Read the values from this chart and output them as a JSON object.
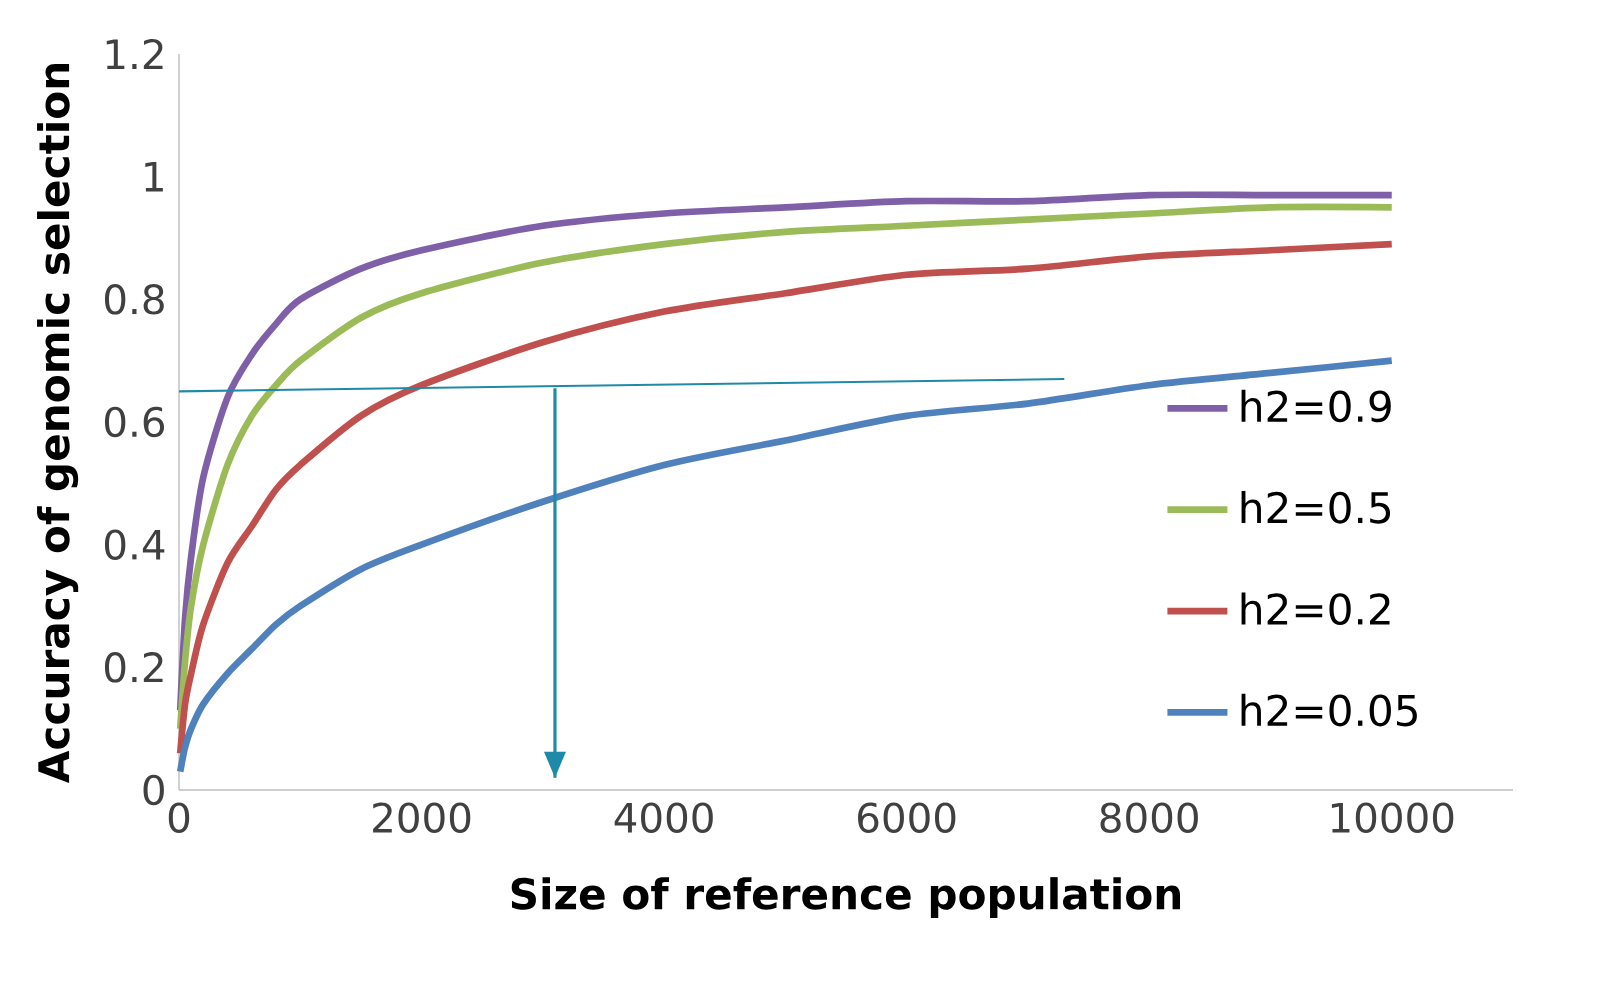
{
  "chart_data": {
    "type": "line",
    "xlabel": "Size of reference population",
    "ylabel": "Accuracy of genomic selection",
    "x": [
      10,
      50,
      100,
      200,
      400,
      600,
      800,
      1000,
      1500,
      2000,
      3000,
      4000,
      5000,
      6000,
      7000,
      8000,
      9000,
      10000
    ],
    "series": [
      {
        "name": "h2=0.9",
        "color": "#7f60a8",
        "values": [
          0.13,
          0.28,
          0.38,
          0.51,
          0.64,
          0.71,
          0.76,
          0.8,
          0.85,
          0.88,
          0.92,
          0.94,
          0.95,
          0.96,
          0.96,
          0.97,
          0.97,
          0.97
        ]
      },
      {
        "name": "h2=0.5",
        "color": "#9bbb59",
        "values": [
          0.1,
          0.21,
          0.3,
          0.4,
          0.53,
          0.61,
          0.66,
          0.7,
          0.77,
          0.81,
          0.86,
          0.89,
          0.91,
          0.92,
          0.93,
          0.94,
          0.95,
          0.95
        ]
      },
      {
        "name": "h2=0.2",
        "color": "#c0504d",
        "values": [
          0.06,
          0.14,
          0.19,
          0.27,
          0.37,
          0.43,
          0.49,
          0.53,
          0.61,
          0.66,
          0.73,
          0.78,
          0.81,
          0.84,
          0.85,
          0.87,
          0.88,
          0.89
        ]
      },
      {
        "name": "h2=0.05",
        "color": "#4f81bd",
        "values": [
          0.03,
          0.07,
          0.1,
          0.14,
          0.19,
          0.23,
          0.27,
          0.3,
          0.36,
          0.4,
          0.47,
          0.53,
          0.57,
          0.61,
          0.63,
          0.66,
          0.68,
          0.7
        ]
      },
      {
        "type": "line",
        "color": "#1f8aa8",
        "x": [
          0,
          7300
        ],
        "values": [
          0.65,
          0.67
        ]
      },
      {
        "type": "line",
        "color": "#1f8aa8",
        "x": [
          3100,
          3100
        ],
        "values": [
          0.655,
          0.02
        ]
      }
    ],
    "xlim": [
      0,
      11000
    ],
    "ylim": [
      0,
      1.2
    ],
    "xticks": [
      0,
      2000,
      4000,
      6000,
      8000,
      10000
    ],
    "yticks": [
      0,
      0.2,
      0.4,
      0.6,
      0.8,
      1,
      1.2
    ],
    "grid": false,
    "legend": "right",
    "marker": "none",
    "line_style": "solid"
  }
}
